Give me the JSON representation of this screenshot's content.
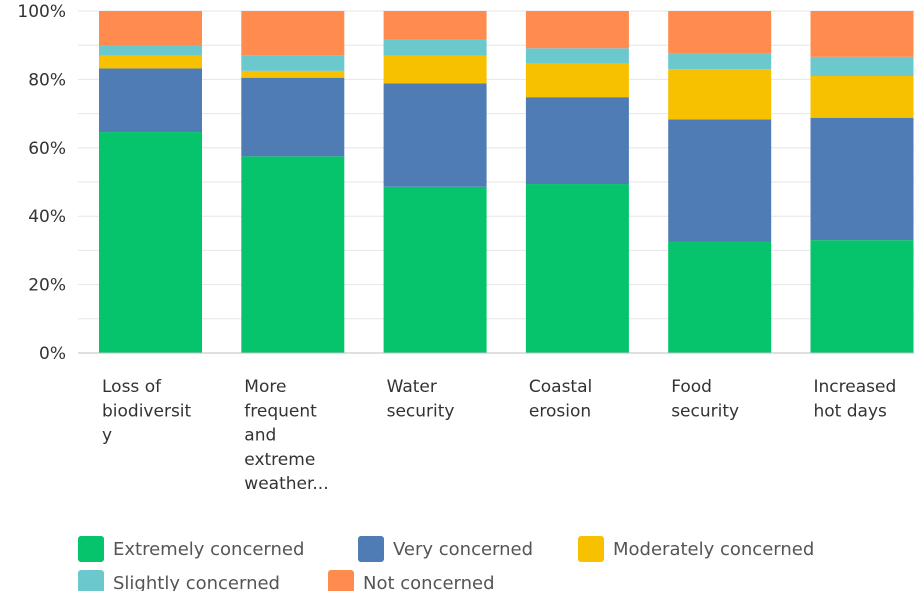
{
  "chart_data": {
    "type": "bar",
    "stacked": true,
    "categories": [
      [
        "Loss of",
        "biodiversit",
        "y"
      ],
      [
        "More",
        "frequent",
        "and",
        "extreme",
        "weather..."
      ],
      [
        "Water",
        "security"
      ],
      [
        "Coastal",
        "erosion"
      ],
      [
        "Food",
        "security"
      ],
      [
        "Increased",
        "hot days"
      ]
    ],
    "yticks": [
      "0%",
      "20%",
      "40%",
      "60%",
      "80%",
      "100%"
    ],
    "ylim": [
      0,
      100
    ],
    "grid": true,
    "legend_position": "bottom",
    "series": [
      {
        "name": "Extremely concerned",
        "color": "#05C46B",
        "values": [
          64.6,
          57.5,
          48.6,
          49.4,
          32.6,
          33.0
        ]
      },
      {
        "name": "Very concerned",
        "color": "#507CB6",
        "values": [
          18.6,
          23.0,
          30.2,
          25.4,
          35.7,
          35.8
        ]
      },
      {
        "name": "Moderately concerned",
        "color": "#F7C100",
        "values": [
          3.7,
          2.0,
          8.2,
          9.8,
          14.7,
          12.2
        ]
      },
      {
        "name": "Slightly concerned",
        "color": "#6BC8CD",
        "values": [
          3.0,
          4.6,
          4.8,
          4.5,
          4.5,
          5.6
        ]
      },
      {
        "name": "Not concerned",
        "color": "#FF8B4F",
        "values": [
          10.1,
          12.9,
          8.2,
          10.9,
          12.5,
          13.4
        ]
      }
    ]
  },
  "legend": {
    "rows": [
      [
        {
          "label": "Extremely concerned",
          "color": "#05C46B"
        },
        {
          "label": "Very concerned",
          "color": "#507CB6"
        },
        {
          "label": "Moderately concerned",
          "color": "#F7C100"
        }
      ],
      [
        {
          "label": "Slightly concerned",
          "color": "#6BC8CD"
        },
        {
          "label": "Not concerned",
          "color": "#FF8B4F"
        }
      ]
    ]
  }
}
